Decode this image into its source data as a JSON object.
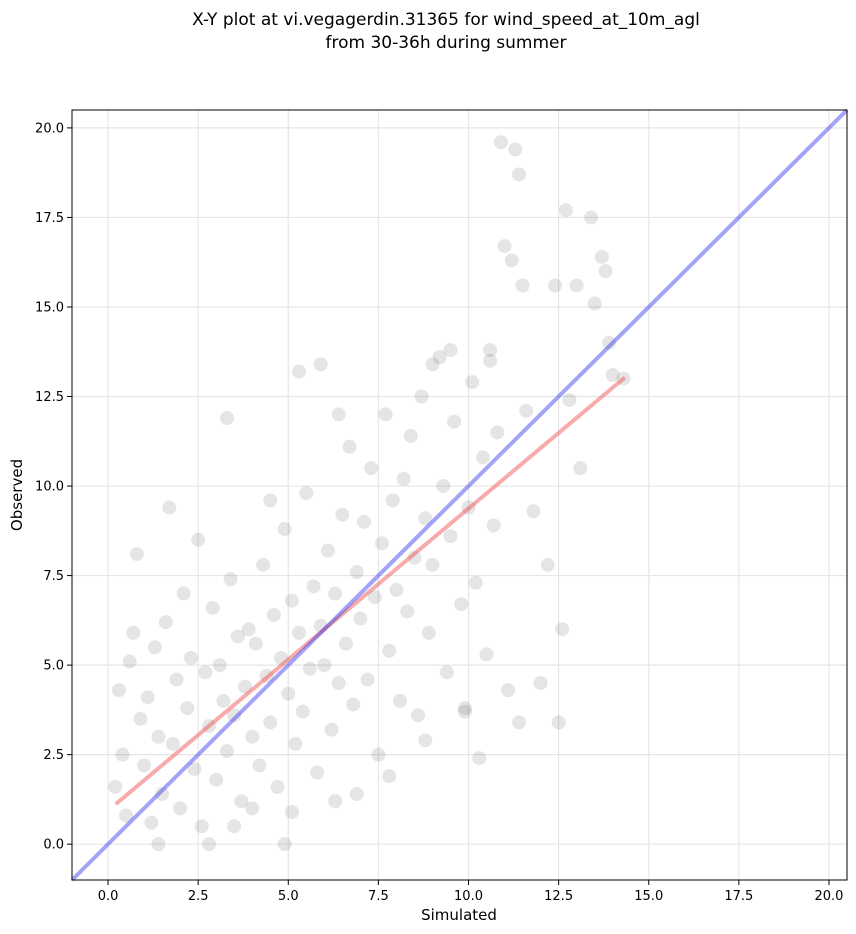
{
  "chart_data": {
    "type": "scatter",
    "title": "X-Y plot at vi.vegagerdin.31365 for wind_speed_at_10m_agl",
    "subtitle": "from 30-36h during summer",
    "xlabel": "Simulated",
    "ylabel": "Observed",
    "xlim": [
      -1.0,
      20.5
    ],
    "ylim": [
      -1.0,
      20.5
    ],
    "x_ticks": [
      0.0,
      2.5,
      5.0,
      7.5,
      10.0,
      12.5,
      15.0,
      17.5,
      20.0
    ],
    "y_ticks": [
      0.0,
      2.5,
      5.0,
      7.5,
      10.0,
      12.5,
      15.0,
      17.5,
      20.0
    ],
    "x_tick_labels": [
      "0.0",
      "2.5",
      "5.0",
      "7.5",
      "10.0",
      "12.5",
      "15.0",
      "17.5",
      "20.0"
    ],
    "y_tick_labels": [
      "0.0",
      "2.5",
      "5.0",
      "7.5",
      "10.0",
      "12.5",
      "15.0",
      "17.5",
      "20.0"
    ],
    "grid": true,
    "point_color": "#333333",
    "points": [
      [
        0.2,
        1.6
      ],
      [
        0.3,
        4.3
      ],
      [
        0.4,
        2.5
      ],
      [
        0.5,
        0.8
      ],
      [
        0.6,
        5.1
      ],
      [
        0.7,
        5.9
      ],
      [
        0.8,
        8.1
      ],
      [
        0.9,
        3.5
      ],
      [
        1.0,
        2.2
      ],
      [
        1.1,
        4.1
      ],
      [
        1.2,
        0.6
      ],
      [
        1.3,
        5.5
      ],
      [
        1.4,
        3.0
      ],
      [
        1.5,
        1.4
      ],
      [
        1.6,
        6.2
      ],
      [
        1.7,
        9.4
      ],
      [
        1.8,
        2.8
      ],
      [
        1.9,
        4.6
      ],
      [
        2.0,
        1.0
      ],
      [
        2.1,
        7.0
      ],
      [
        2.2,
        3.8
      ],
      [
        2.3,
        5.2
      ],
      [
        2.4,
        2.1
      ],
      [
        2.5,
        8.5
      ],
      [
        2.6,
        0.5
      ],
      [
        2.7,
        4.8
      ],
      [
        2.8,
        3.3
      ],
      [
        2.9,
        6.6
      ],
      [
        3.0,
        1.8
      ],
      [
        3.1,
        5.0
      ],
      [
        3.2,
        4.0
      ],
      [
        3.3,
        2.6
      ],
      [
        3.4,
        7.4
      ],
      [
        3.5,
        3.6
      ],
      [
        3.6,
        5.8
      ],
      [
        3.7,
        1.2
      ],
      [
        3.8,
        4.4
      ],
      [
        3.9,
        6.0
      ],
      [
        4.0,
        3.0
      ],
      [
        4.1,
        5.6
      ],
      [
        4.2,
        2.2
      ],
      [
        4.3,
        7.8
      ],
      [
        4.4,
        4.7
      ],
      [
        4.5,
        3.4
      ],
      [
        4.6,
        6.4
      ],
      [
        4.7,
        1.6
      ],
      [
        4.8,
        5.2
      ],
      [
        4.9,
        8.8
      ],
      [
        5.0,
        4.2
      ],
      [
        5.1,
        6.8
      ],
      [
        5.2,
        2.8
      ],
      [
        5.3,
        5.9
      ],
      [
        5.4,
        3.7
      ],
      [
        5.5,
        9.8
      ],
      [
        5.6,
        4.9
      ],
      [
        5.7,
        7.2
      ],
      [
        5.8,
        2.0
      ],
      [
        5.9,
        6.1
      ],
      [
        6.0,
        5.0
      ],
      [
        6.1,
        8.2
      ],
      [
        6.2,
        3.2
      ],
      [
        6.3,
        7.0
      ],
      [
        6.4,
        4.5
      ],
      [
        6.5,
        9.2
      ],
      [
        6.6,
        5.6
      ],
      [
        6.7,
        11.1
      ],
      [
        6.8,
        3.9
      ],
      [
        6.9,
        7.6
      ],
      [
        7.0,
        6.3
      ],
      [
        7.1,
        9.0
      ],
      [
        7.2,
        4.6
      ],
      [
        7.3,
        10.5
      ],
      [
        7.4,
        6.9
      ],
      [
        7.5,
        2.5
      ],
      [
        7.6,
        8.4
      ],
      [
        7.7,
        12.0
      ],
      [
        7.8,
        5.4
      ],
      [
        7.9,
        9.6
      ],
      [
        8.0,
        7.1
      ],
      [
        8.1,
        4.0
      ],
      [
        8.2,
        10.2
      ],
      [
        8.3,
        6.5
      ],
      [
        8.4,
        11.4
      ],
      [
        8.5,
        8.0
      ],
      [
        8.6,
        3.6
      ],
      [
        8.7,
        12.5
      ],
      [
        8.8,
        9.1
      ],
      [
        8.9,
        5.9
      ],
      [
        9.0,
        7.8
      ],
      [
        9.2,
        13.6
      ],
      [
        9.3,
        10.0
      ],
      [
        9.4,
        4.8
      ],
      [
        9.5,
        8.6
      ],
      [
        9.6,
        11.8
      ],
      [
        9.8,
        6.7
      ],
      [
        9.9,
        3.7
      ],
      [
        10.0,
        9.4
      ],
      [
        10.1,
        12.9
      ],
      [
        10.2,
        7.3
      ],
      [
        10.3,
        2.4
      ],
      [
        10.4,
        10.8
      ],
      [
        10.5,
        5.3
      ],
      [
        10.6,
        13.5
      ],
      [
        10.7,
        8.9
      ],
      [
        10.8,
        11.5
      ],
      [
        10.9,
        19.6
      ],
      [
        11.0,
        16.7
      ],
      [
        11.1,
        4.3
      ],
      [
        11.2,
        16.3
      ],
      [
        11.3,
        19.4
      ],
      [
        11.4,
        18.7
      ],
      [
        11.5,
        15.6
      ],
      [
        11.6,
        12.1
      ],
      [
        11.8,
        9.3
      ],
      [
        12.0,
        4.5
      ],
      [
        12.2,
        7.8
      ],
      [
        12.4,
        15.6
      ],
      [
        12.5,
        3.4
      ],
      [
        12.6,
        6.0
      ],
      [
        12.7,
        17.7
      ],
      [
        12.8,
        12.4
      ],
      [
        13.0,
        15.6
      ],
      [
        13.1,
        10.5
      ],
      [
        13.4,
        17.5
      ],
      [
        13.5,
        15.1
      ],
      [
        13.7,
        16.4
      ],
      [
        13.8,
        16.0
      ],
      [
        13.9,
        14.0
      ],
      [
        14.0,
        13.1
      ],
      [
        14.3,
        13.0
      ],
      [
        3.3,
        11.9
      ],
      [
        4.5,
        9.6
      ],
      [
        5.3,
        13.2
      ],
      [
        5.9,
        13.4
      ],
      [
        6.4,
        12.0
      ],
      [
        2.8,
        0.0
      ],
      [
        4.9,
        0.0
      ],
      [
        1.4,
        0.0
      ],
      [
        3.5,
        0.5
      ],
      [
        4.0,
        1.0
      ],
      [
        5.1,
        0.9
      ],
      [
        6.3,
        1.2
      ],
      [
        6.9,
        1.4
      ],
      [
        7.8,
        1.9
      ],
      [
        8.8,
        2.9
      ],
      [
        9.9,
        3.8
      ],
      [
        11.4,
        3.4
      ],
      [
        9.5,
        13.8
      ],
      [
        9.0,
        13.4
      ],
      [
        10.6,
        13.8
      ]
    ],
    "fit_line": {
      "x": [
        0.25,
        14.3
      ],
      "y": [
        1.15,
        13.0
      ],
      "color": "#ee4444"
    },
    "one_to_one_line": {
      "x": [
        -1.0,
        20.5
      ],
      "y": [
        -1.0,
        20.5
      ],
      "color": "#3333ee"
    }
  }
}
